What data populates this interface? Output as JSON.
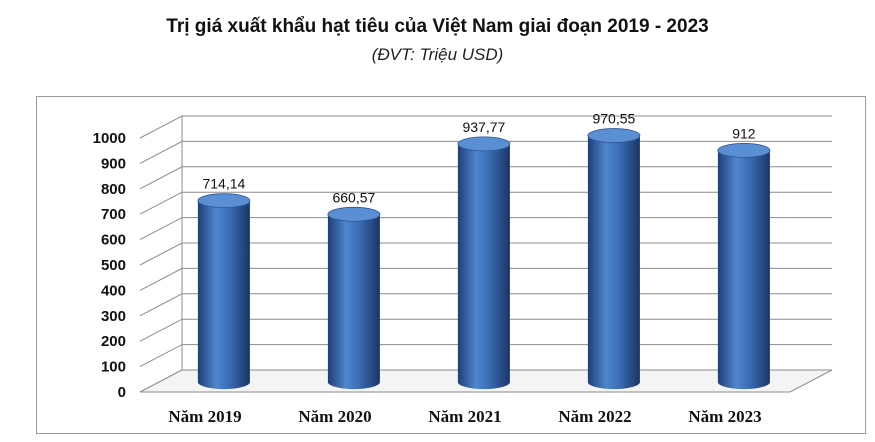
{
  "header": {
    "title": "Trị giá xuất khẩu hạt tiêu của Việt Nam giai đoạn 2019 - 2023",
    "subtitle": "(ĐVT: Triệu USD)"
  },
  "chart_data": {
    "type": "bar",
    "style": "3d-cylinder",
    "title": "Trị giá xuất khẩu hạt tiêu của Việt Nam giai đoạn 2019 - 2023",
    "subtitle": "(ĐVT: Triệu USD)",
    "categories": [
      "Năm 2019",
      "Năm 2020",
      "Năm 2021",
      "Năm 2022",
      "Năm 2023"
    ],
    "values": [
      714.14,
      660.57,
      937.77,
      970.55,
      912
    ],
    "data_labels": [
      "714,14",
      "660,57",
      "937,77",
      "970,55",
      "912"
    ],
    "ylim": [
      0,
      1000
    ],
    "yticks": [
      0,
      100,
      200,
      300,
      400,
      500,
      600,
      700,
      800,
      900,
      1000
    ],
    "grid": true,
    "legend": "none",
    "colors": {
      "bar": "#3a6db4",
      "bar_dark": "#1f3f77",
      "bar_light": "#7fa7dd",
      "grid": "#8c8c8c"
    }
  }
}
